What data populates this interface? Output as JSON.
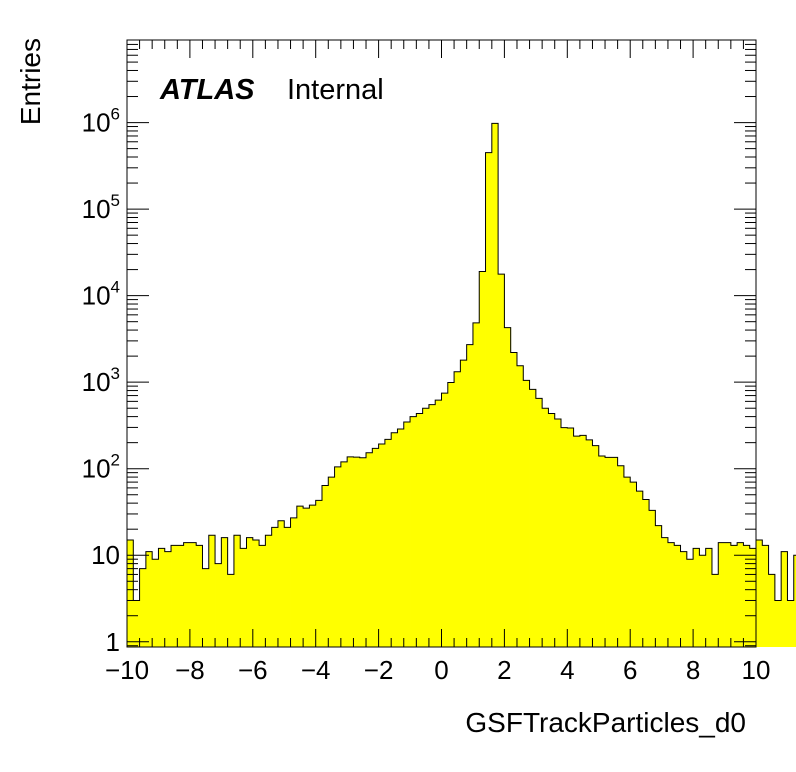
{
  "chart_data": {
    "type": "bar",
    "style": "histogram",
    "xlabel": "GSFTrackParticles_d0",
    "ylabel": "Entries",
    "xlim": [
      -10,
      10
    ],
    "ylim": [
      0.87,
      9000000
    ],
    "yscale": "log",
    "x_tick_labels": [
      "−10",
      "−8",
      "−6",
      "−4",
      "−2",
      "0",
      "2",
      "4",
      "6",
      "8",
      "10"
    ],
    "x_tick_values": [
      -10,
      -8,
      -6,
      -4,
      -2,
      0,
      2,
      4,
      6,
      8,
      10
    ],
    "y_tick_values": [
      1,
      10,
      100,
      1000,
      10000,
      100000,
      1000000
    ],
    "y_tick_labels": [
      {
        "base": "1",
        "exp": ""
      },
      {
        "base": "10",
        "exp": ""
      },
      {
        "base": "10",
        "exp": "2"
      },
      {
        "base": "10",
        "exp": "3"
      },
      {
        "base": "10",
        "exp": "4"
      },
      {
        "base": "10",
        "exp": "5"
      },
      {
        "base": "10",
        "exp": "6"
      }
    ],
    "annotation": {
      "bold": "ATLAS",
      "text": "Internal"
    },
    "fill_color": "#ffff00",
    "line_color": "#000000",
    "bins": {
      "start": -10,
      "width": 0.2,
      "values": [
        15,
        3,
        7,
        11,
        9,
        12,
        11,
        13,
        13,
        14,
        14,
        13,
        7,
        17,
        8,
        16,
        6,
        17,
        12,
        16,
        15,
        13,
        17,
        21,
        25,
        21,
        27,
        37,
        35,
        38,
        43,
        64,
        80,
        105,
        120,
        137,
        136,
        134,
        153,
        172,
        193,
        218,
        260,
        288,
        347,
        400,
        435,
        500,
        550,
        620,
        747,
        992,
        1320,
        1798,
        2712,
        4850,
        19000,
        450000,
        980000,
        17700,
        4270,
        2200,
        1550,
        1050,
        825,
        650,
        500,
        435,
        375,
        298,
        295,
        238,
        243,
        215,
        185,
        140,
        135,
        135,
        108,
        80,
        70,
        55,
        44,
        33,
        22,
        16,
        14,
        13,
        11,
        9,
        12,
        10,
        12,
        6,
        14,
        14,
        13,
        14,
        13,
        12,
        15,
        13,
        6,
        3,
        11,
        3,
        10
      ]
    }
  }
}
